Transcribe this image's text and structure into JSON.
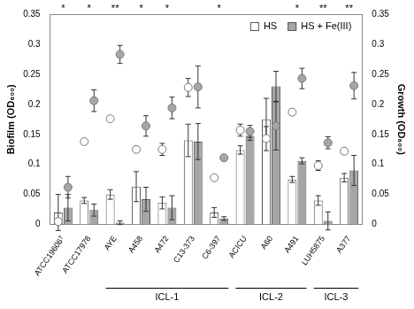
{
  "chart_data": {
    "type": "bar",
    "categories": [
      "ATCC19606ᵀ",
      "ATCC17978",
      "AYE",
      "A458",
      "A472",
      "C13-373",
      "C6-397",
      "ACICU",
      "A60",
      "A491",
      "LUH5875",
      "A377"
    ],
    "series": [
      {
        "name": "HS",
        "color": "#ffffff",
        "axis": "y",
        "values": [
          0.02,
          0.04,
          0.05,
          0.063,
          0.036,
          0.14,
          0.02,
          0.124,
          0.175,
          0.075,
          0.04,
          0.078
        ],
        "errors": [
          0.03,
          0.005,
          0.008,
          0.025,
          0.01,
          0.027,
          0.008,
          0.007,
          0.035,
          0.005,
          0.008,
          0.007
        ]
      },
      {
        "name": "HS + Fe(III)",
        "color": "#a6a6a6",
        "axis": "y",
        "values": [
          0.028,
          0.024,
          0.003,
          0.042,
          0.028,
          0.138,
          0.01,
          0.148,
          0.23,
          0.106,
          0.006,
          0.09
        ],
        "errors": [
          0.022,
          0.01,
          0.003,
          0.02,
          0.02,
          0.03,
          0.003,
          0.008,
          0.025,
          0.005,
          0.015,
          0.025
        ]
      },
      {
        "type": "scatter",
        "marker": "circle",
        "color": "#ffffff",
        "axis": "y2",
        "values": [
          0.005,
          0.138,
          0.176,
          0.125,
          0.125,
          0.228,
          0.078,
          0.157,
          0.143,
          0.187,
          0.098,
          0.122
        ],
        "errors": [
          0.003,
          0.004,
          0.004,
          0.005,
          0.01,
          0.015,
          0.003,
          0.01,
          0.02,
          0.005,
          0.008,
          0.005
        ]
      },
      {
        "type": "scatter",
        "marker": "circle",
        "color": "#a6a6a6",
        "axis": "y2",
        "values": [
          0.062,
          0.206,
          0.283,
          0.164,
          0.194,
          0.229,
          0.111,
          0.155,
          0.164,
          0.243,
          0.136,
          0.231
        ],
        "errors": [
          0.018,
          0.018,
          0.015,
          0.017,
          0.018,
          0.035,
          0.003,
          0.01,
          0.04,
          0.017,
          0.01,
          0.022
        ]
      }
    ],
    "y_label": "Biofilm (OD₆₀₀)",
    "y2_label": "Growth (OD₆₀₀)",
    "ylim": [
      0,
      0.35
    ],
    "yticks": [
      0,
      0.05,
      0.1,
      0.15,
      0.2,
      0.25,
      0.3,
      0.35
    ],
    "y2lim": [
      0,
      0.35
    ],
    "y2ticks": [
      0,
      0.05,
      0.1,
      0.15,
      0.2,
      0.25,
      0.3,
      0.35
    ],
    "significance": [
      "*",
      "*",
      "**",
      "*",
      "*",
      null,
      "*",
      null,
      null,
      "*",
      "**",
      "**"
    ],
    "groups": [
      {
        "label": "ICL-1",
        "categories": [
          "AYE",
          "A458",
          "A472",
          "C13-373",
          "C6-397"
        ]
      },
      {
        "label": "ICL-2",
        "categories": [
          "ACICU",
          "A60",
          "A491"
        ]
      },
      {
        "label": "ICL-3",
        "categories": [
          "LUH5875",
          "A377"
        ]
      }
    ],
    "legend": "top-right",
    "grid": false
  }
}
